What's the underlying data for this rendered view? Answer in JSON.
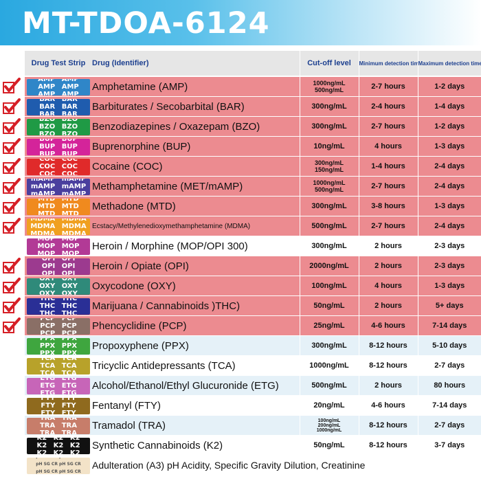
{
  "title": "MT-TDOA-6124",
  "headers": {
    "strip": "Drug Test Strip",
    "name": "Drug (Identifier)",
    "cutoff": "Cut-off level",
    "min": "Minimum detection time",
    "max": "Maximum detection time"
  },
  "colors": {
    "title_bar": "#2aa8e0",
    "header_text": "#1c3f8f",
    "included_row": "#ec8b90",
    "check": "#d61f26"
  },
  "rows": [
    {
      "code": "AMP",
      "name": "Amphetamine (AMP)",
      "cutoff": [
        "1000ng/mL",
        "500ng/mL"
      ],
      "min": "2-7 hours",
      "max": "1-2 days",
      "included": true,
      "strip_color": "#2f86c8",
      "strip_text": "AMP AMP"
    },
    {
      "code": "BAR",
      "name": "Barbiturates / Secobarbital (BAR)",
      "cutoff": [
        "300ng/mL"
      ],
      "min": "2-4 hours",
      "max": "1-4 days",
      "included": true,
      "strip_color": "#1f5cae",
      "strip_text": "BAR BAR"
    },
    {
      "code": "BZO",
      "name": "Benzodiazepines / Oxazepam (BZO)",
      "cutoff": [
        "300ng/mL"
      ],
      "min": "2-7 hours",
      "max": "1-2 days",
      "included": true,
      "strip_color": "#1f9a45",
      "strip_text": "BZO BZO"
    },
    {
      "code": "BUP",
      "name": "Buprenorphine (BUP)",
      "cutoff": [
        "10ng/mL"
      ],
      "min": "4 hours",
      "max": "1-3 days",
      "included": true,
      "strip_color": "#d4249a",
      "strip_text": "BUP BUP"
    },
    {
      "code": "COC",
      "name": "Cocaine (COC)",
      "cutoff": [
        "300ng/mL",
        "150ng/mL"
      ],
      "min": "1-4 hours",
      "max": "2-4 days",
      "included": true,
      "strip_color": "#e02a2a",
      "strip_text": "COC COC"
    },
    {
      "code": "mAMP",
      "name": "Methamphetamine (MET/mAMP)",
      "cutoff": [
        "1000ng/mL",
        "500ng/mL"
      ],
      "min": "2-7 hours",
      "max": "2-4 days",
      "included": true,
      "strip_color": "#4a3f9e",
      "strip_text": "mAMP mAMP"
    },
    {
      "code": "MTD",
      "name": "Methadone (MTD)",
      "cutoff": [
        "300ng/mL"
      ],
      "min": "3-8 hours",
      "max": "1-3 days",
      "included": true,
      "strip_color": "#f08a1e",
      "strip_text": "MTD MTD"
    },
    {
      "code": "MDMA",
      "name": "Ecstacy/Methylenedioxymethamphetamine (MDMA)",
      "cutoff": [
        "500ng/mL"
      ],
      "min": "2-7 hours",
      "max": "2-4 days",
      "included": true,
      "strip_color": "#f0a020",
      "strip_text": "MDMA MDMA"
    },
    {
      "code": "MOP",
      "name": "Heroin / Morphine (MOP/OPI 300)",
      "cutoff": [
        "300ng/mL"
      ],
      "min": "2 hours",
      "max": "2-3 days",
      "included": false,
      "strip_color": "#b23a96",
      "strip_text": "MOP MOP"
    },
    {
      "code": "OPI",
      "name": "Heroin / Opiate (OPI)",
      "cutoff": [
        "2000ng/mL"
      ],
      "min": "2 hours",
      "max": "2-3 days",
      "included": true,
      "strip_color": "#9c3a8f",
      "strip_text": "OPI OPI"
    },
    {
      "code": "OXY",
      "name": "Oxycodone (OXY)",
      "cutoff": [
        "100ng/mL"
      ],
      "min": "4 hours",
      "max": "1-3 days",
      "included": true,
      "strip_color": "#2f8a7a",
      "strip_text": "OXY OXY"
    },
    {
      "code": "THC",
      "name": "Marijuana / Cannabinoids )THC)",
      "cutoff": [
        "50ng/mL"
      ],
      "min": "2 hours",
      "max": "5+ days",
      "included": true,
      "strip_color": "#2a2f96",
      "strip_text": "THC THC"
    },
    {
      "code": "PCP",
      "name": "Phencyclidine (PCP)",
      "cutoff": [
        "25ng/mL"
      ],
      "min": "4-6 hours",
      "max": "7-14 days",
      "included": true,
      "strip_color": "#8a6f66",
      "strip_text": "PCP PCP"
    },
    {
      "code": "PPX",
      "name": "Propoxyphene (PPX)",
      "cutoff": [
        "300ng/mL"
      ],
      "min": "8-12 hours",
      "max": "5-10 days",
      "included": false,
      "strip_color": "#3fa63f",
      "strip_text": "PPX PPX"
    },
    {
      "code": "TCA",
      "name": "Tricyclic Antidepressants (TCA)",
      "cutoff": [
        "1000ng/mL"
      ],
      "min": "8-12 hours",
      "max": "2-7 days",
      "included": false,
      "strip_color": "#b8a22a",
      "strip_text": "TCA TCA"
    },
    {
      "code": "ETG",
      "name": "Alcohol/Ethanol/Ethyl Glucuronide (ETG)",
      "cutoff": [
        "500ng/mL"
      ],
      "min": "2 hours",
      "max": "80 hours",
      "included": false,
      "strip_color": "#c765b8",
      "strip_text": "ETG ETG"
    },
    {
      "code": "FTY",
      "name": "Fentanyl (FTY)",
      "cutoff": [
        "20ng/mL"
      ],
      "min": "4-6 hours",
      "max": "7-14 days",
      "included": false,
      "strip_color": "#8f6a1e",
      "strip_text": "FTY FTY"
    },
    {
      "code": "TRA",
      "name": "Tramadol (TRA)",
      "cutoff": [
        "100ng/mL",
        "200ng/mL",
        "1000ng/mL"
      ],
      "min": "8-12 hours",
      "max": "2-7 days",
      "included": false,
      "strip_color": "#c77d6a",
      "strip_text": "TRA TRA"
    },
    {
      "code": "K2",
      "name": "Synthetic Cannabinoids (K2)",
      "cutoff": [
        "50ng/mL"
      ],
      "min": "8-12 hours",
      "max": "3-7 days",
      "included": false,
      "strip_color": "#111111",
      "strip_text": "K2 K2 K2"
    }
  ],
  "adulteration": {
    "text": "Adulteration (A3) pH Acidity, Specific Gravity Dilution, Creatinine",
    "strip_color": "#f3e3c8"
  }
}
